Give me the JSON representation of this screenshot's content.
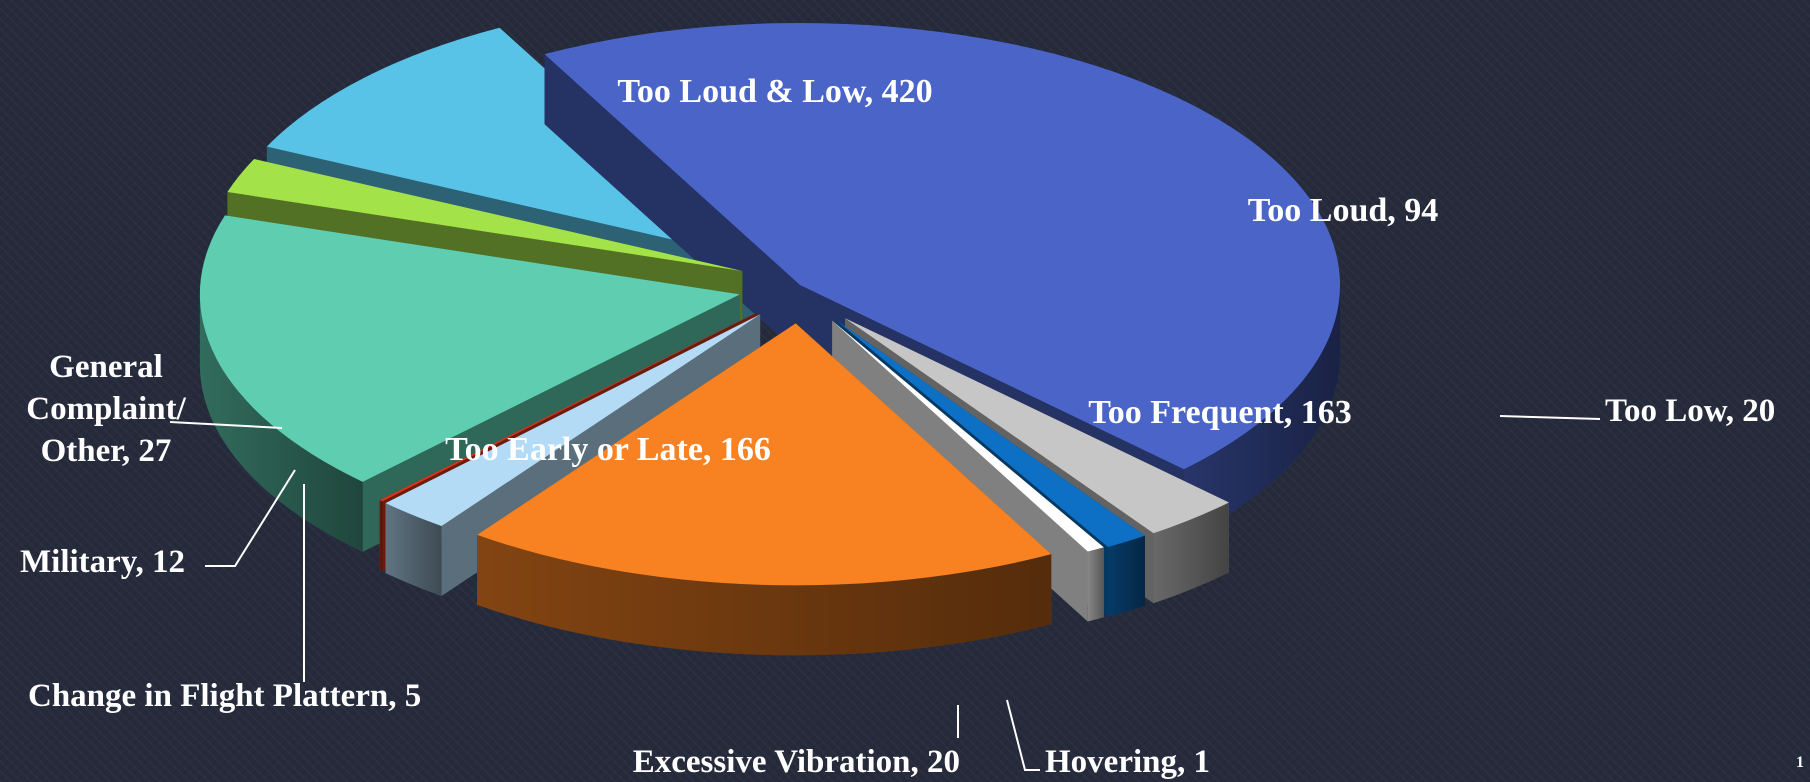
{
  "page_number": "1",
  "chart_data": {
    "type": "pie",
    "title": "",
    "slices": [
      {
        "label": "Too Loud & Low",
        "value": 420,
        "display": "Too Loud & Low, 420",
        "color": "#4a64c8"
      },
      {
        "label": "Too Loud",
        "value": 94,
        "display": "Too Loud, 94",
        "color": "#58c3e6"
      },
      {
        "label": "Too Low",
        "value": 20,
        "display": "Too Low, 20",
        "color": "#a4e24a"
      },
      {
        "label": "Too Frequent",
        "value": 163,
        "display": "Too Frequent, 163",
        "color": "#5ecdb0"
      },
      {
        "label": "Hovering",
        "value": 1,
        "display": "Hovering, 1",
        "color": "#d8361c"
      },
      {
        "label": "Excessive Vibration",
        "value": 20,
        "display": "Excessive Vibration, 20",
        "color": "#b4dbf5"
      },
      {
        "label": "Too Early or Late",
        "value": 166,
        "display": "Too Early or Late, 166",
        "color": "#f88122"
      },
      {
        "label": "Change in Flight Plattern",
        "value": 5,
        "display": "Change in Flight Plattern, 5",
        "color": "#ffffff"
      },
      {
        "label": "Military",
        "value": 12,
        "display": "Military, 12",
        "color": "#0d70c4"
      },
      {
        "label": "General Complaint/ Other",
        "value": 27,
        "display": "General Complaint/ Other, 27",
        "display_lines": [
          "General",
          "Complaint/",
          "Other, 27"
        ],
        "color": "#c6c6c6"
      }
    ],
    "legend": "none",
    "style": "3d-exploded"
  }
}
